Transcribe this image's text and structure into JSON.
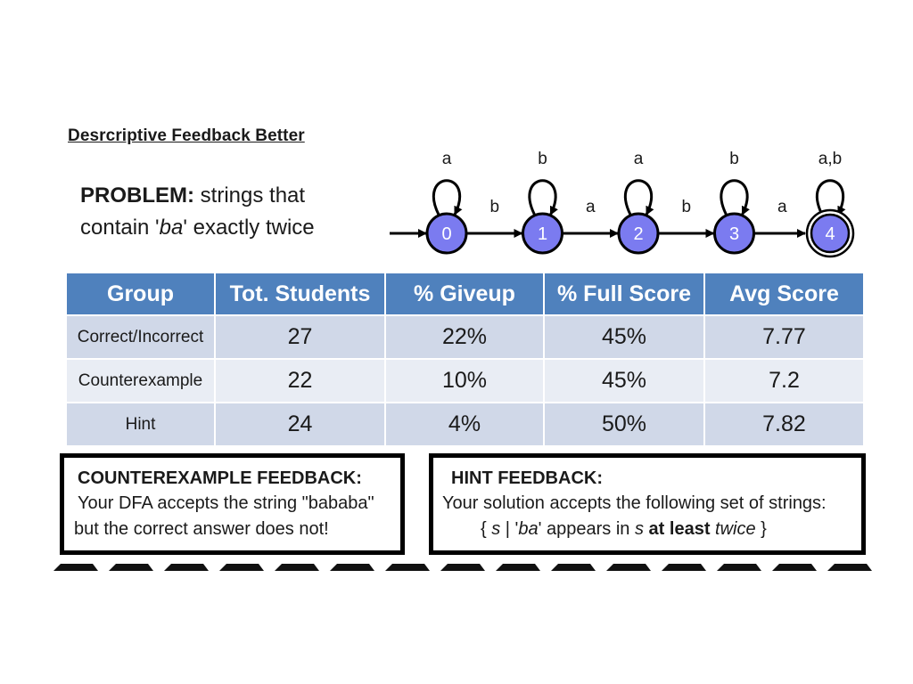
{
  "heading": "Desrcriptive Feedback Better",
  "problem": {
    "label": "PROBLEM:",
    "line1_rest": " strings that",
    "line2_pre": "contain '",
    "line2_em": "ba",
    "line2_post": "' exactly twice"
  },
  "dfa": {
    "states": [
      "0",
      "1",
      "2",
      "3",
      "4"
    ],
    "accepting_state": "4",
    "start_state": "0",
    "self_loops": [
      "a",
      "b",
      "a",
      "b",
      "a,b"
    ],
    "transitions": [
      "b",
      "a",
      "b",
      "a"
    ],
    "colors": {
      "state_fill": "#7b7bf0",
      "stroke": "#000000"
    }
  },
  "table": {
    "headers": [
      "Group",
      "Tot. Students",
      "% Giveup",
      "% Full Score",
      "Avg Score"
    ],
    "rows": [
      [
        "Correct/Incorrect",
        "27",
        "22%",
        "45%",
        "7.77"
      ],
      [
        "Counterexample",
        "22",
        "10%",
        "45%",
        "7.2"
      ],
      [
        "Hint",
        "24",
        "4%",
        "50%",
        "7.82"
      ]
    ],
    "colors": {
      "header": "#4f81bd",
      "row_odd": "#d0d8e8",
      "row_even": "#e9edf4"
    }
  },
  "counterexample_box": {
    "title": "COUNTEREXAMPLE FEEDBACK:",
    "line1": "Your DFA accepts the string \"bababa\"",
    "line2": "but the correct answer does not!"
  },
  "hint_box": {
    "title": "HINT FEEDBACK:",
    "line1": "Your solution accepts the following set of strings:",
    "set_open": "{ ",
    "set_s1": "s",
    "set_mid1": " | '",
    "set_ba": "ba",
    "set_mid2": "' appears in ",
    "set_s2": "s",
    "set_space": " ",
    "set_bold": "at least",
    "set_space2": " ",
    "set_twice": "twice",
    "set_close": " }"
  }
}
